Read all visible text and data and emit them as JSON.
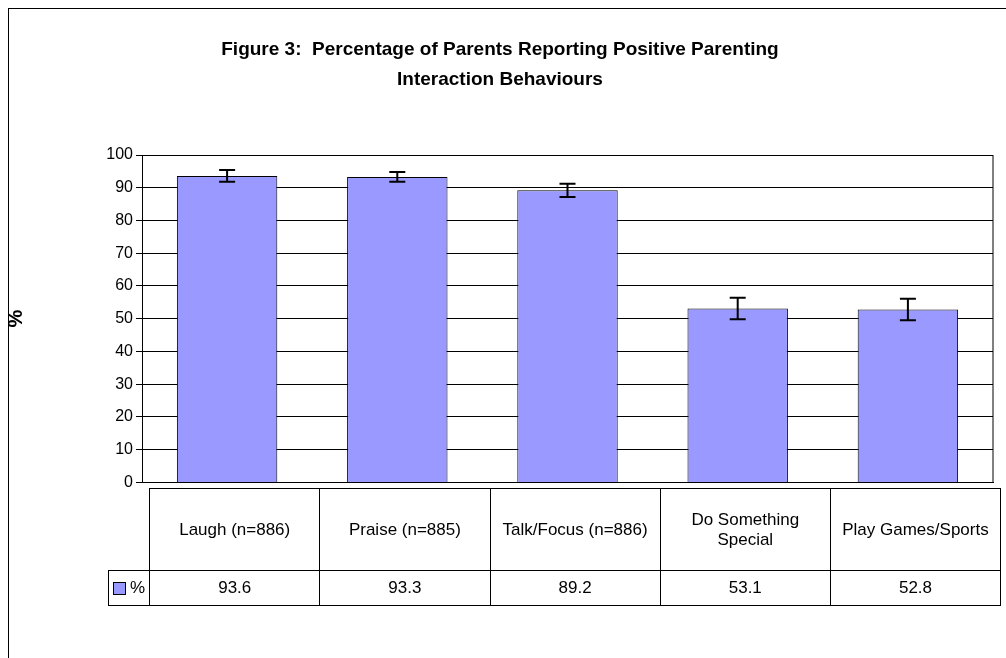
{
  "chart_data": {
    "type": "bar",
    "title": "Figure 3:  Percentage of Parents Reporting Positive Parenting Interaction Behaviours",
    "ylabel": "%",
    "categories": [
      "Laugh (n=886)",
      "Praise (n=885)",
      "Talk/Focus (n=886)",
      "Do Something Special",
      "Play Games/Sports"
    ],
    "series": [
      {
        "name": "%",
        "color": "#9999ff",
        "values": [
          93.6,
          93.3,
          89.2,
          53.1,
          52.8
        ],
        "errors": [
          1.8,
          1.5,
          2,
          3.3,
          3.3
        ]
      }
    ],
    "ylim": [
      0,
      100
    ],
    "yticks": [
      0,
      10,
      20,
      30,
      40,
      50,
      60,
      70,
      80,
      90,
      100
    ],
    "grid": "y",
    "legend": "bottom left",
    "data_labels": true
  }
}
